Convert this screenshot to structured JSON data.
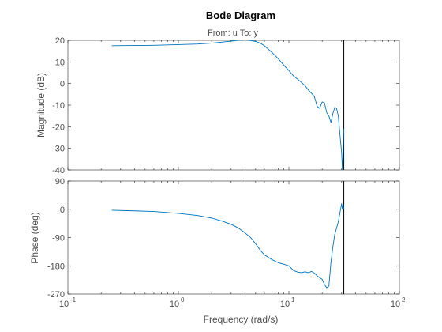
{
  "chart_data": {
    "type": "line",
    "title": "Bode Diagram",
    "subtitle": "From: u  To: y",
    "xlabel": "Frequency  (rad/s)",
    "xscale": "log",
    "xlim": [
      0.1,
      100
    ],
    "x_ticks": [
      {
        "value": 0.1,
        "base": "10",
        "exp": "-1"
      },
      {
        "value": 1,
        "base": "10",
        "exp": "0"
      },
      {
        "value": 10,
        "base": "10",
        "exp": "1"
      },
      {
        "value": 100,
        "base": "10",
        "exp": "2"
      }
    ],
    "line_color": "#0072bd",
    "nyquist_line_color": "#000000",
    "nyquist_frequency": 31.4,
    "magnitude": {
      "ylabel": "Magnitude (dB)",
      "ylim": [
        -40,
        20
      ],
      "yticks": [
        20,
        10,
        0,
        -10,
        -20,
        -30,
        -40
      ],
      "x": [
        0.25,
        0.4,
        0.6,
        1.0,
        1.5,
        2.0,
        2.5,
        3.0,
        3.5,
        4.0,
        4.5,
        5.0,
        5.5,
        6.0,
        7.0,
        8.0,
        9.0,
        10.0,
        11.0,
        12.0,
        13.0,
        14.0,
        15.0,
        16.0,
        17.0,
        18.0,
        19.0,
        20.0,
        21.0,
        22.0,
        23.0,
        24.0,
        25.0,
        26.0,
        27.0,
        28.0,
        29.0,
        30.0,
        30.5,
        31.0,
        31.4
      ],
      "y": [
        17.5,
        17.6,
        17.7,
        18.0,
        18.3,
        18.7,
        19.2,
        19.6,
        20.0,
        20.1,
        19.9,
        19.5,
        18.7,
        17.5,
        14.5,
        11.5,
        8.5,
        6.0,
        3.5,
        2.0,
        0.5,
        -1.0,
        -3.0,
        -4.5,
        -6.0,
        -10.5,
        -11.5,
        -8.5,
        -9.0,
        -13.5,
        -15.0,
        -18.0,
        -14.0,
        -11.0,
        -11.5,
        -15.0,
        -24.0,
        -32.0,
        -40.0,
        -30.0,
        -21.0
      ]
    },
    "phase": {
      "ylabel": "Phase (deg)",
      "ylim": [
        -270,
        90
      ],
      "yticks": [
        90,
        0,
        -90,
        -180,
        -270
      ],
      "x": [
        0.25,
        0.4,
        0.6,
        1.0,
        1.5,
        2.0,
        2.5,
        3.0,
        3.5,
        4.0,
        4.5,
        5.0,
        5.5,
        6.0,
        7.0,
        8.0,
        9.0,
        10.0,
        11.0,
        12.0,
        13.0,
        14.0,
        15.0,
        16.0,
        17.0,
        18.0,
        19.0,
        20.0,
        21.0,
        22.0,
        23.0,
        24.0,
        25.0,
        26.0,
        27.0,
        28.0,
        29.0,
        30.0,
        30.5,
        31.0,
        31.4
      ],
      "y": [
        -3,
        -5,
        -7,
        -13,
        -20,
        -28,
        -38,
        -48,
        -60,
        -75,
        -90,
        -110,
        -130,
        -145,
        -160,
        -170,
        -175,
        -180,
        -195,
        -200,
        -202,
        -199,
        -202,
        -198,
        -203,
        -212,
        -218,
        -223,
        -240,
        -250,
        -245,
        -170,
        -120,
        -80,
        -60,
        -40,
        -10,
        18,
        0,
        15,
        0
      ]
    }
  }
}
